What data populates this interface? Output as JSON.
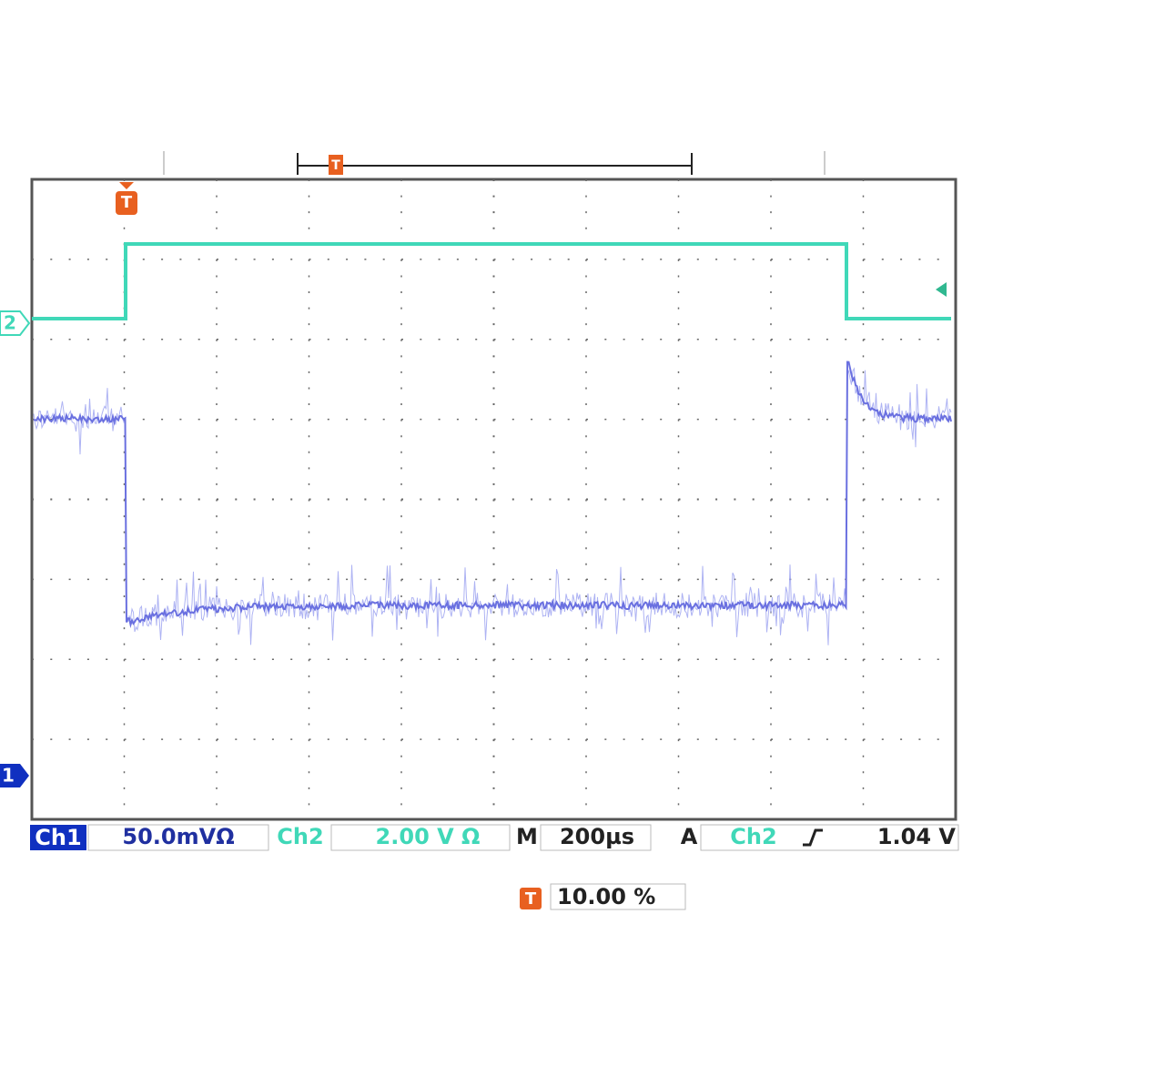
{
  "markers": {
    "channel2": "2",
    "channel1": "1",
    "trigger": "T",
    "trigger_position": "T"
  },
  "status_bar": {
    "ch1_label": "Ch1",
    "ch1_scale": "50.0mVΩ",
    "ch2_label": "Ch2",
    "ch2_scale": "2.00 V Ω",
    "timebase_label": "M",
    "timebase": "200µs",
    "trigger_label": "A",
    "trigger_source": "Ch2",
    "trigger_level": "1.04 V"
  },
  "trigger_position": {
    "icon": "T",
    "value": "10.00 %"
  }
}
